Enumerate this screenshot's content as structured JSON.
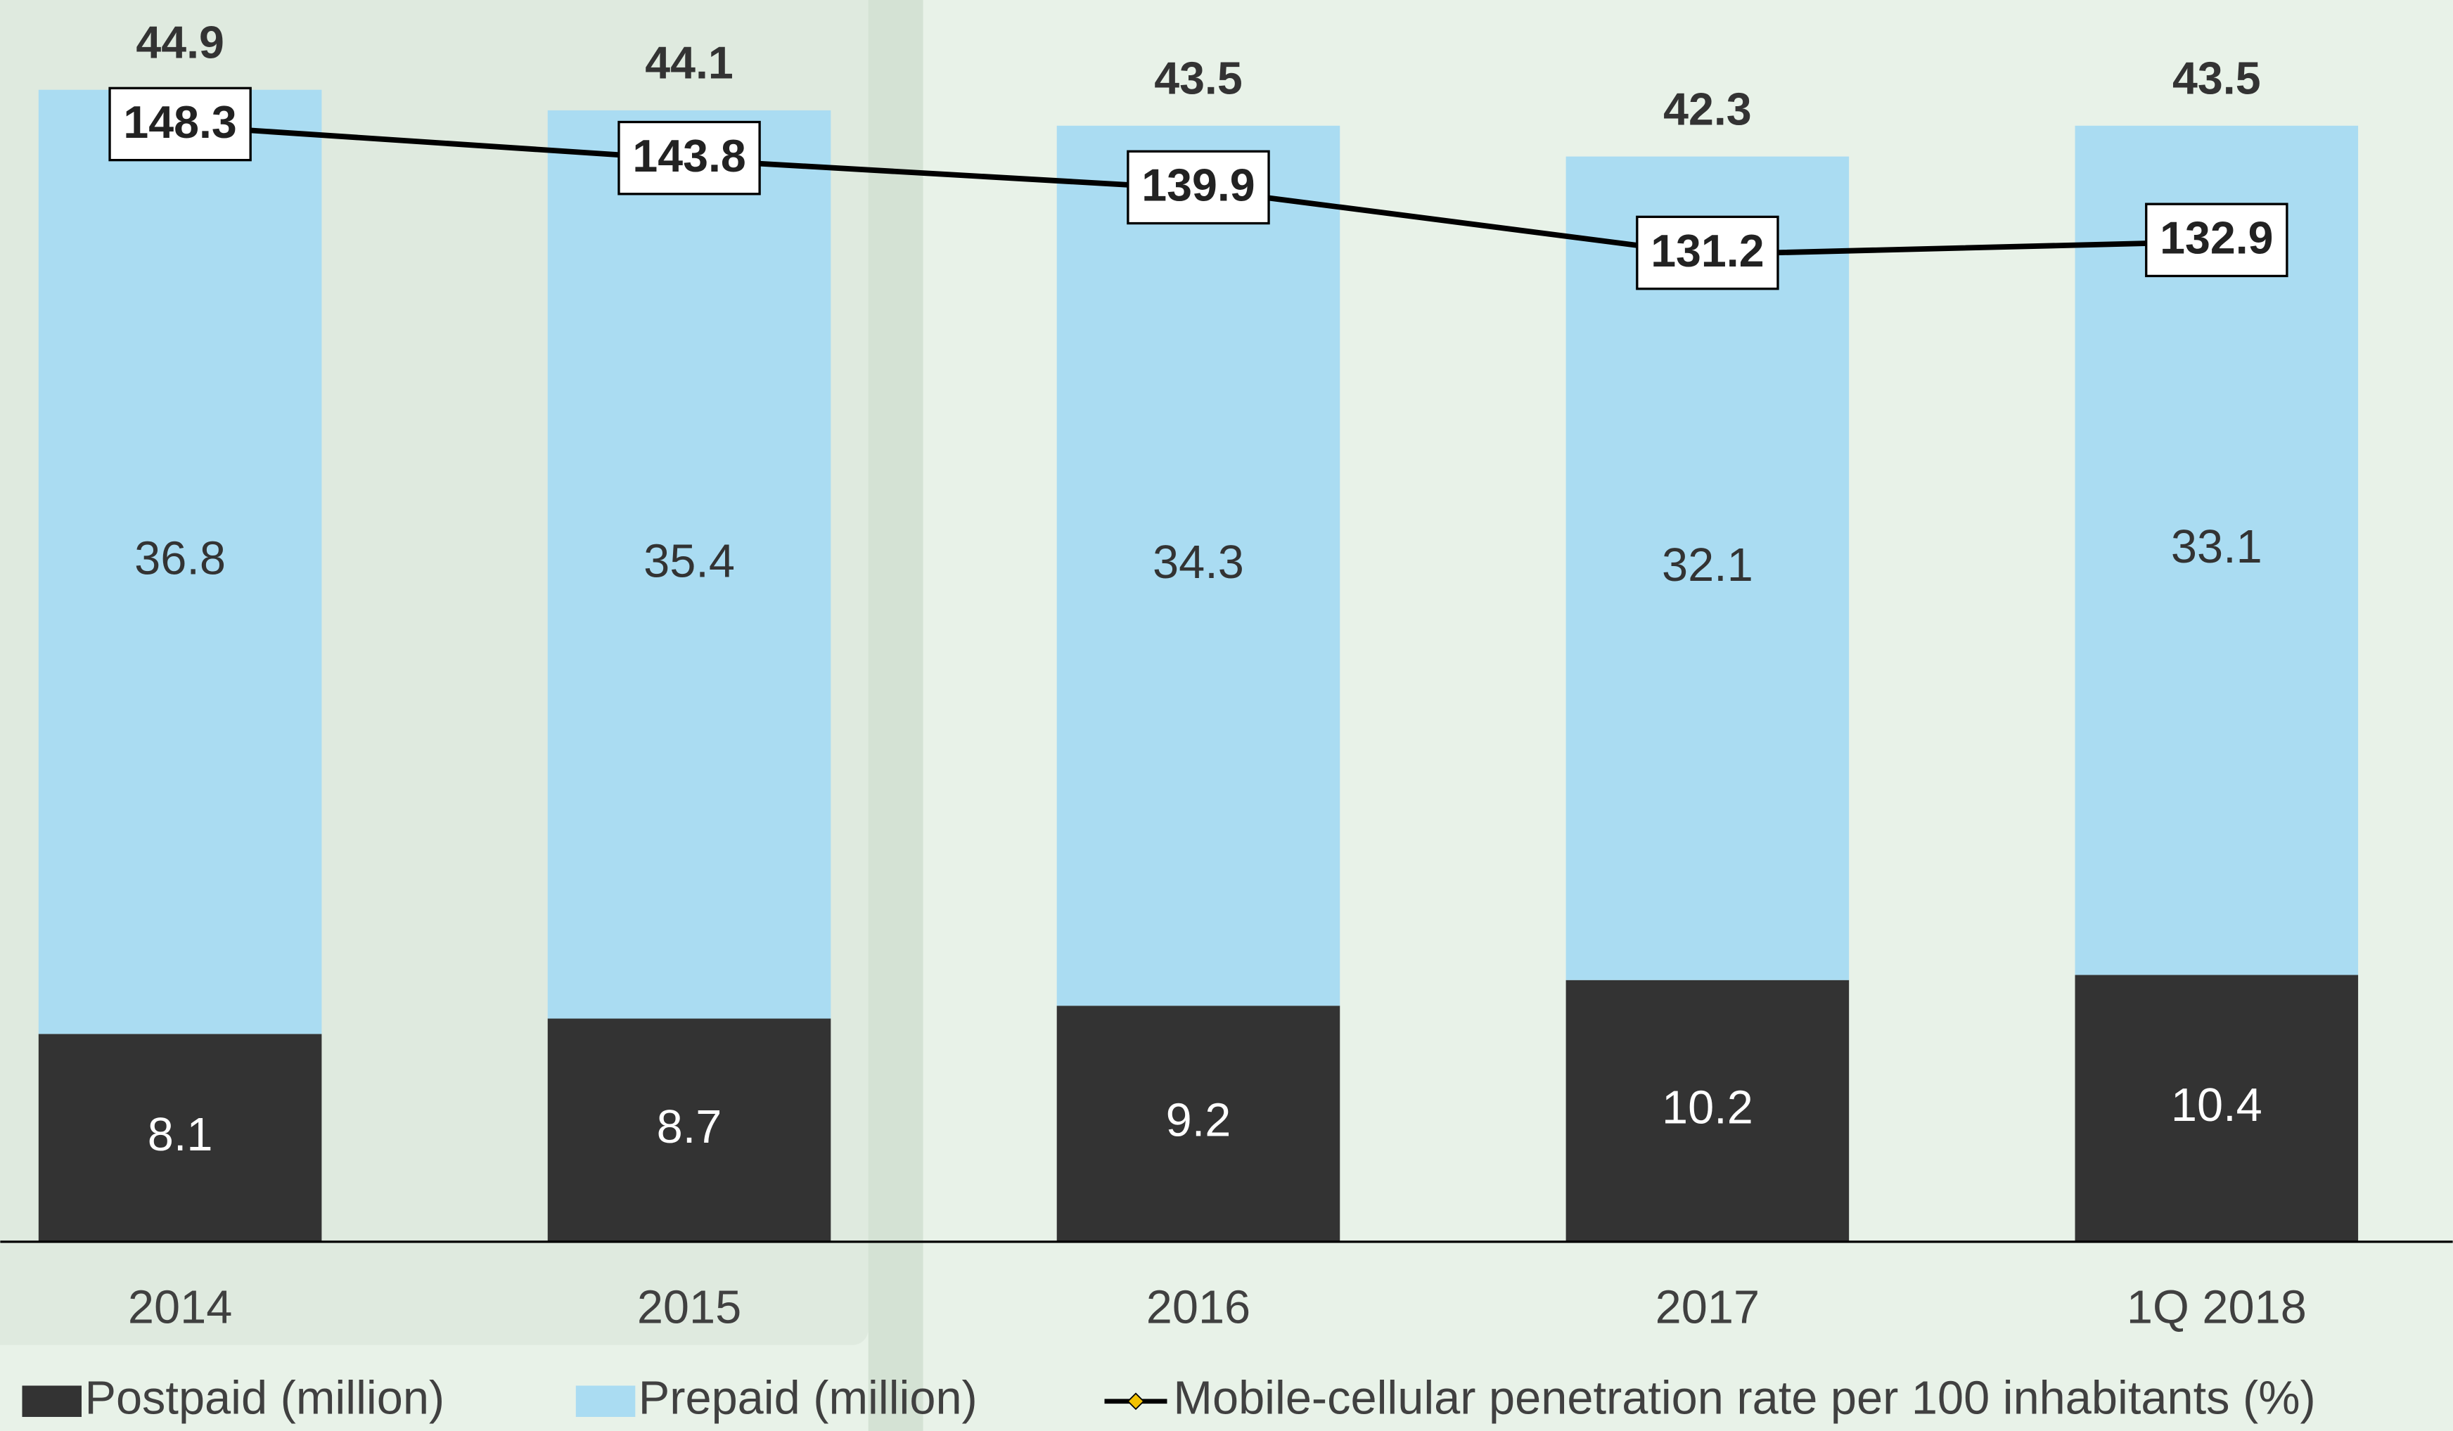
{
  "chart_data": {
    "type": "bar",
    "stacked": true,
    "categories": [
      "2014",
      "2015",
      "2016",
      "2017",
      "1Q 2018"
    ],
    "series": [
      {
        "name": "Postpaid (million)",
        "color": "#333333",
        "values": [
          8.1,
          8.7,
          9.2,
          10.2,
          10.4
        ]
      },
      {
        "name": "Prepaid (million)",
        "color": "#aadcf2",
        "values": [
          36.8,
          35.4,
          34.3,
          32.1,
          33.1
        ]
      },
      {
        "name": "Mobile-cellular penetration rate per 100 inhabitants (%)",
        "type": "line",
        "axis": "y2",
        "color": "#000000",
        "marker_color": "#f2c200",
        "values": [
          148.3,
          143.8,
          139.9,
          131.2,
          132.9
        ]
      }
    ],
    "totals": [
      44.9,
      44.1,
      43.5,
      42.3,
      43.5
    ],
    "ylim": [
      0,
      48.4
    ],
    "y2lim": [
      0,
      165
    ],
    "legend": "bottom"
  }
}
